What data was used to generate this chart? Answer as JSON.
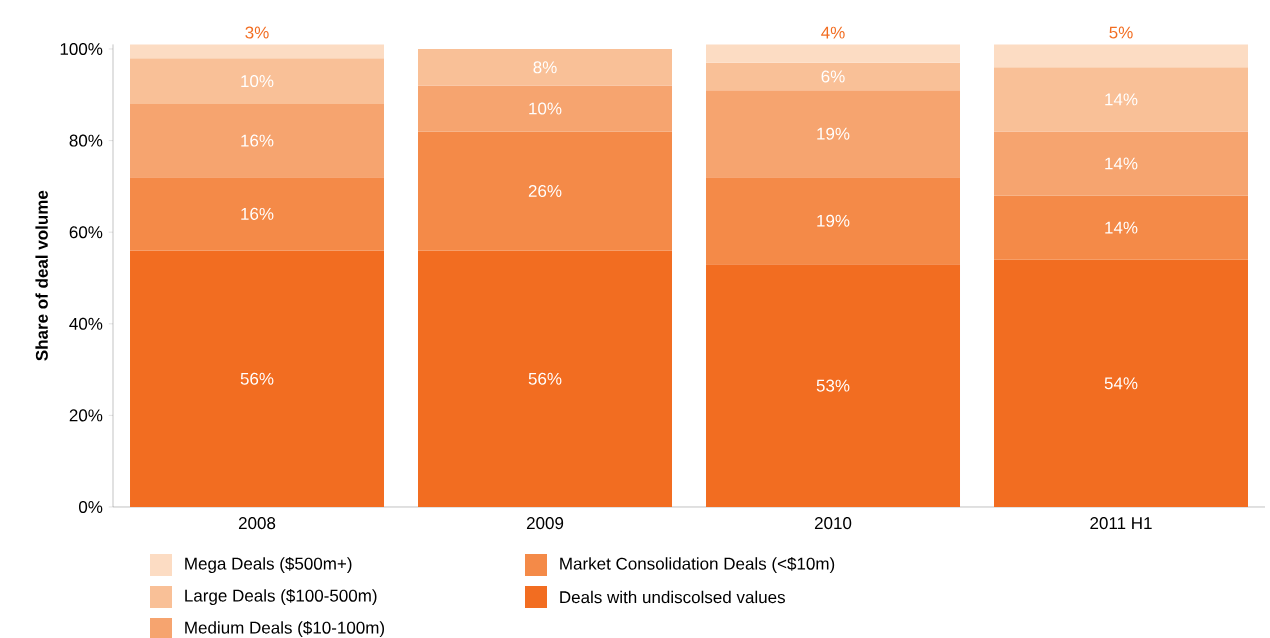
{
  "chart_data": {
    "type": "bar",
    "stacked": true,
    "ylabel": "Share of deal volume",
    "categories": [
      "2008",
      "2009",
      "2010",
      "2011 H1"
    ],
    "series": [
      {
        "name": "Deals with undiscolsed values",
        "color": "#f26d21",
        "values": [
          56,
          56,
          53,
          54
        ],
        "value_labels": [
          "56%",
          "56%",
          "53%",
          "54%"
        ]
      },
      {
        "name": "Market Consolidation Deals (<$10m)",
        "color": "#f48a48",
        "values": [
          16,
          26,
          19,
          14
        ],
        "value_labels": [
          "16%",
          "26%",
          "19%",
          "14%"
        ]
      },
      {
        "name": "Medium Deals ($10-100m)",
        "color": "#f6a46f",
        "values": [
          16,
          10,
          19,
          14
        ],
        "value_labels": [
          "16%",
          "10%",
          "19%",
          "14%"
        ]
      },
      {
        "name": "Large Deals ($100-500m)",
        "color": "#f9c097",
        "values": [
          10,
          8,
          6,
          14
        ],
        "value_labels": [
          "10%",
          "8%",
          "6%",
          "14%"
        ]
      },
      {
        "name": "Mega Deals ($500m+)",
        "color": "#fcdcc3",
        "values": [
          3,
          null,
          4,
          5
        ],
        "value_labels": [
          "3%",
          null,
          "4%",
          "5%"
        ]
      }
    ],
    "ylim": [
      0,
      101
    ],
    "yticks": [
      {
        "value": 0,
        "label": "0%"
      },
      {
        "value": 20,
        "label": "20%"
      },
      {
        "value": 40,
        "label": "40%"
      },
      {
        "value": 60,
        "label": "60%"
      },
      {
        "value": 80,
        "label": "80%"
      },
      {
        "value": 100,
        "label": "100%"
      }
    ],
    "legend": "bottom",
    "grid": false
  }
}
